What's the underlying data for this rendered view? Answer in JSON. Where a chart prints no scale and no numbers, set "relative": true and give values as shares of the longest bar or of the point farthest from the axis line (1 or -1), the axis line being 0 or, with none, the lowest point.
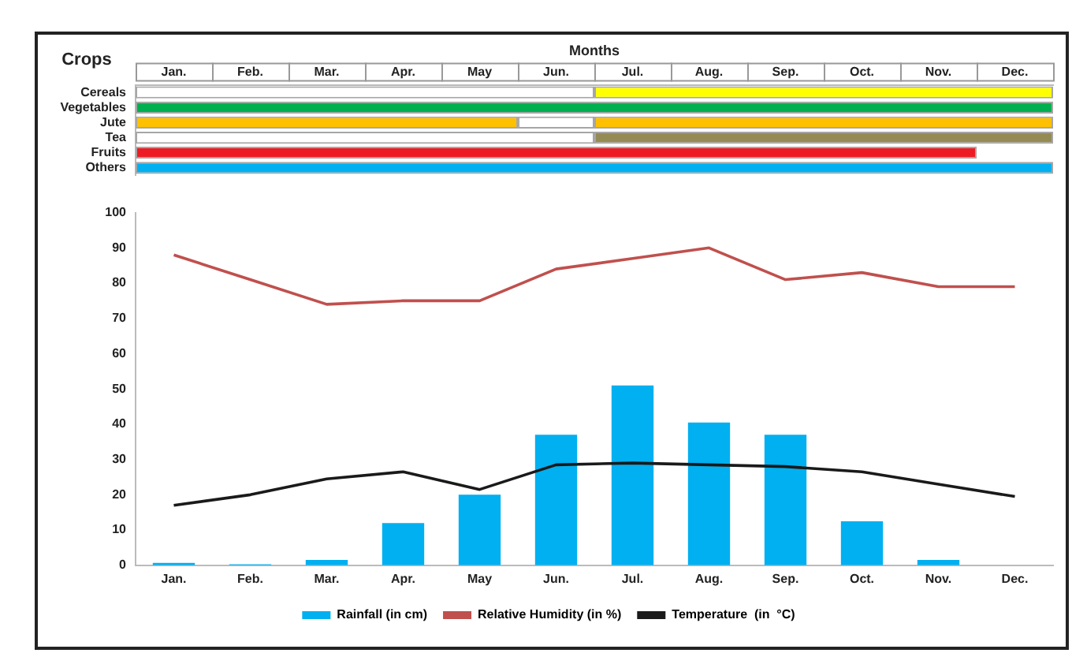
{
  "chart_data": [
    {
      "type": "bar",
      "orientation": "horizontal",
      "relative": true,
      "xlabel": "Months",
      "ylabel": "Crops",
      "categories": [
        "Cereals",
        "Vegetables",
        "Jute",
        "Tea",
        "Fruits",
        "Others"
      ],
      "annotations": [
        "Jan.",
        "Feb.",
        "Mar.",
        "Apr.",
        "May",
        "Jun.",
        "Jul.",
        "Aug.",
        "Sep.",
        "Oct.",
        "Nov.",
        "Dec."
      ],
      "series": [
        {
          "values": [
            0.5,
            1,
            0.4167,
            0.5,
            0.9167,
            1
          ],
          "colors": [
            "#ffffff",
            "#00b050",
            "#ffc000",
            "#ffffff",
            "#ed1c24",
            "#00b0f0"
          ]
        },
        {
          "values": [
            0.5,
            null,
            0.0833,
            0.5,
            null,
            null
          ],
          "colors": [
            "#ffff00",
            "#ffffff",
            "#ffffff",
            "#948a54",
            "#ffffff",
            "#ffffff"
          ]
        },
        {
          "values": [
            null,
            null,
            0.5,
            null,
            null,
            null
          ],
          "color": "#ffc000"
        }
      ],
      "stacked": true,
      "grid": false,
      "legend": false
    },
    {
      "type": "bar",
      "categories": [
        "Jan.",
        "Feb.",
        "Mar.",
        "Apr.",
        "May",
        "Jun.",
        "Jul.",
        "Aug.",
        "Sep.",
        "Oct.",
        "Nov.",
        "Dec."
      ],
      "ylim": [
        0,
        100
      ],
      "yticks": [
        0,
        10,
        20,
        30,
        40,
        50,
        60,
        70,
        80,
        90,
        100
      ],
      "series": [
        {
          "name": "Rainfall (in cm)",
          "color": "#00b0f0",
          "values": [
            0.7,
            0.3,
            1.5,
            12,
            20,
            37,
            51,
            40.5,
            37,
            12.5,
            1.5,
            0
          ]
        },
        {
          "name": "Relative Humidity (in %)",
          "type": "line",
          "color": "#c0504d",
          "values": [
            88,
            81,
            74,
            75,
            75,
            84,
            87,
            90,
            81,
            83,
            79,
            79
          ]
        },
        {
          "name": "Temperature  (in  °C)",
          "type": "line",
          "color": "#1a1a1a",
          "values": [
            17,
            20,
            24.5,
            26.5,
            21.5,
            28.5,
            29,
            28.5,
            28,
            26.5,
            23,
            19.5
          ]
        }
      ],
      "grid": false,
      "legend": "bottom",
      "marker": "none"
    }
  ]
}
